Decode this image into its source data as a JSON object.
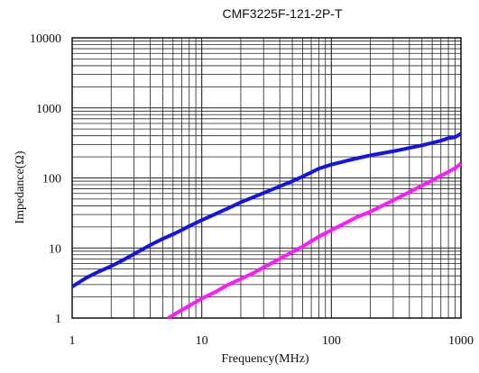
{
  "chart_data": {
    "type": "line",
    "title": "CMF3225F-121-2P-T",
    "xlabel": "Frequency(MHz)",
    "ylabel": "Impedance(Ω)",
    "xscale": "log",
    "yscale": "log",
    "xlim": [
      1,
      1000
    ],
    "ylim": [
      1,
      10000
    ],
    "x_ticks": [
      "1",
      "10",
      "100",
      "1000"
    ],
    "y_ticks": [
      "1",
      "10",
      "100",
      "1000",
      "10000"
    ],
    "grid": true,
    "legend": "none",
    "series": [
      {
        "color": "#1414e6",
        "points": [
          [
            1,
            2.8
          ],
          [
            1.3,
            3.8
          ],
          [
            1.6,
            4.6
          ],
          [
            2,
            5.5
          ],
          [
            2.5,
            6.8
          ],
          [
            3,
            8.2
          ],
          [
            4,
            11
          ],
          [
            5,
            13.5
          ],
          [
            6,
            15.7
          ],
          [
            7,
            18
          ],
          [
            8,
            20.5
          ],
          [
            10,
            25
          ],
          [
            13,
            31
          ],
          [
            16,
            37
          ],
          [
            20,
            45
          ],
          [
            25,
            53
          ],
          [
            30,
            61
          ],
          [
            40,
            76
          ],
          [
            50,
            90
          ],
          [
            60,
            105
          ],
          [
            70,
            120
          ],
          [
            80,
            136
          ],
          [
            100,
            155
          ],
          [
            130,
            175
          ],
          [
            160,
            192
          ],
          [
            200,
            210
          ],
          [
            300,
            240
          ],
          [
            400,
            268
          ],
          [
            500,
            292
          ],
          [
            600,
            316
          ],
          [
            700,
            340
          ],
          [
            800,
            370
          ],
          [
            900,
            380
          ],
          [
            1000,
            430
          ]
        ]
      },
      {
        "color": "#ff19ff",
        "points": [
          [
            5.5,
            1
          ],
          [
            6,
            1.1
          ],
          [
            7,
            1.3
          ],
          [
            8,
            1.5
          ],
          [
            10,
            1.9
          ],
          [
            13,
            2.4
          ],
          [
            16,
            3
          ],
          [
            20,
            3.6
          ],
          [
            25,
            4.4
          ],
          [
            30,
            5.3
          ],
          [
            40,
            7
          ],
          [
            50,
            8.8
          ],
          [
            60,
            10.5
          ],
          [
            70,
            12.5
          ],
          [
            80,
            14.5
          ],
          [
            100,
            18
          ],
          [
            130,
            23
          ],
          [
            160,
            28
          ],
          [
            200,
            33
          ],
          [
            300,
            48
          ],
          [
            400,
            63
          ],
          [
            500,
            78
          ],
          [
            600,
            92
          ],
          [
            700,
            108
          ],
          [
            800,
            122
          ],
          [
            900,
            138
          ],
          [
            1000,
            160
          ]
        ]
      }
    ]
  }
}
